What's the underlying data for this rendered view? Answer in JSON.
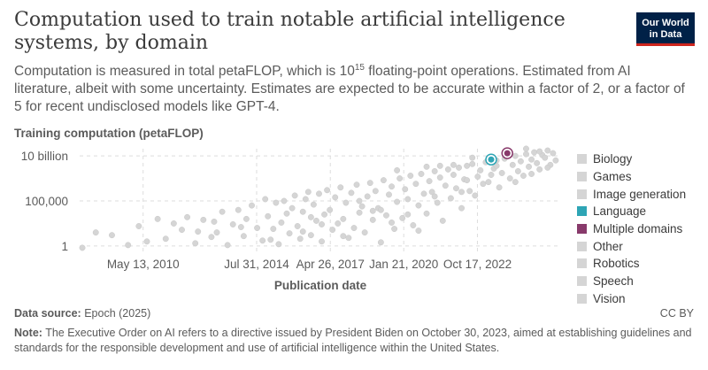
{
  "header": {
    "title": "Computation used to train notable artificial intelligence systems, by domain",
    "subtitle_part1": "Computation is measured in total petaFLOP, which is 10",
    "subtitle_sup": "15",
    "subtitle_part2": " floating-point operations. Estimated from AI literature, albeit with some uncertainty. Estimates are expected to be accurate within a factor of 2, or a factor of 5 for recent undisclosed models like GPT-4."
  },
  "logo": {
    "line1": "Our World",
    "line2": "in Data"
  },
  "footer": {
    "source_label": "Data source:",
    "source_value": " Epoch (2025)",
    "license": "CC BY",
    "note_label": "Note:",
    "note_value": " The Executive Order on AI refers to a directive issued by President Biden on October 30, 2023, aimed at establishing guidelines and standards for the responsible development and use of artificial intelligence within the United States."
  },
  "colors": {
    "neutral": "#d5d5d5",
    "language": "#2ea5b5",
    "multiple": "#883a6b",
    "grid": "#dddddd"
  },
  "chart_data": {
    "type": "scatter",
    "ylabel": "Training computation (petaFLOP)",
    "xlabel": "Publication date",
    "y_scale": "log",
    "y_log10_range": [
      -0.6,
      10.8
    ],
    "y_ticks": [
      {
        "label": "10 billion",
        "log10": 10
      },
      {
        "label": "100,000",
        "log10": 5
      },
      {
        "label": "1",
        "log10": 0
      }
    ],
    "x_range": [
      2008.0,
      2025.9
    ],
    "x_ticks": [
      {
        "label": "May 13, 2010",
        "year": 2010.36
      },
      {
        "label": "Jul 31, 2014",
        "year": 2014.58
      },
      {
        "label": "Apr 26, 2017",
        "year": 2017.32
      },
      {
        "label": "Jan 21, 2020",
        "year": 2020.05
      },
      {
        "label": "Oct 17, 2022",
        "year": 2022.79
      }
    ],
    "legend": [
      "Biology",
      "Games",
      "Image generation",
      "Language",
      "Multiple domains",
      "Other",
      "Robotics",
      "Speech",
      "Vision"
    ],
    "highlighted": [
      {
        "domain": "Language",
        "year": 2023.3,
        "log10": 9.6
      },
      {
        "domain": "Multiple domains",
        "year": 2023.9,
        "log10": 10.3
      }
    ],
    "points": [
      [
        2008.1,
        -0.2
      ],
      [
        2008.6,
        1.5
      ],
      [
        2009.2,
        1.2
      ],
      [
        2009.8,
        0.1
      ],
      [
        2010.2,
        2.2
      ],
      [
        2010.5,
        0.5
      ],
      [
        2010.9,
        3.0
      ],
      [
        2011.2,
        0.8
      ],
      [
        2011.5,
        2.5
      ],
      [
        2011.8,
        1.8
      ],
      [
        2012.0,
        3.2
      ],
      [
        2012.3,
        0.3
      ],
      [
        2012.6,
        2.9
      ],
      [
        2012.9,
        1.0
      ],
      [
        2013.1,
        1.5
      ],
      [
        2013.3,
        3.8
      ],
      [
        2013.5,
        0.1
      ],
      [
        2013.7,
        2.4
      ],
      [
        2013.9,
        4.0
      ],
      [
        2014.1,
        1.1
      ],
      [
        2014.2,
        3.0
      ],
      [
        2014.4,
        4.5
      ],
      [
        2014.6,
        2.0
      ],
      [
        2014.8,
        0.6
      ],
      [
        2014.9,
        5.2
      ],
      [
        2015.0,
        3.3
      ],
      [
        2015.2,
        1.9
      ],
      [
        2015.3,
        4.8
      ],
      [
        2015.4,
        0.2
      ],
      [
        2015.5,
        2.6
      ],
      [
        2015.6,
        5.0
      ],
      [
        2015.7,
        3.6
      ],
      [
        2015.8,
        1.4
      ],
      [
        2015.9,
        4.2
      ],
      [
        2016.0,
        5.6
      ],
      [
        2016.1,
        2.2
      ],
      [
        2016.2,
        0.8
      ],
      [
        2016.3,
        3.8
      ],
      [
        2016.4,
        5.2
      ],
      [
        2016.5,
        6.0
      ],
      [
        2016.6,
        1.2
      ],
      [
        2016.7,
        4.6
      ],
      [
        2016.8,
        2.8
      ],
      [
        2016.9,
        5.8
      ],
      [
        2017.0,
        0.5
      ],
      [
        2017.1,
        3.5
      ],
      [
        2017.2,
        6.2
      ],
      [
        2017.3,
        4.0
      ],
      [
        2017.4,
        1.8
      ],
      [
        2017.5,
        5.4
      ],
      [
        2017.6,
        2.5
      ],
      [
        2017.7,
        6.5
      ],
      [
        2017.8,
        3.0
      ],
      [
        2017.9,
        4.8
      ],
      [
        2018.0,
        0.9
      ],
      [
        2018.1,
        5.9
      ],
      [
        2018.2,
        2.0
      ],
      [
        2018.3,
        6.8
      ],
      [
        2018.4,
        3.7
      ],
      [
        2018.5,
        4.4
      ],
      [
        2018.6,
        1.5
      ],
      [
        2018.7,
        5.5
      ],
      [
        2018.8,
        7.0
      ],
      [
        2018.9,
        2.9
      ],
      [
        2019.0,
        6.1
      ],
      [
        2019.1,
        4.2
      ],
      [
        2019.2,
        0.4
      ],
      [
        2019.3,
        7.3
      ],
      [
        2019.4,
        3.4
      ],
      [
        2019.5,
        5.7
      ],
      [
        2019.6,
        6.6
      ],
      [
        2019.7,
        1.9
      ],
      [
        2019.8,
        4.9
      ],
      [
        2019.9,
        7.5
      ],
      [
        2020.0,
        3.1
      ],
      [
        2020.1,
        6.3
      ],
      [
        2020.2,
        5.2
      ],
      [
        2020.3,
        7.8
      ],
      [
        2020.4,
        2.3
      ],
      [
        2020.5,
        6.9
      ],
      [
        2020.6,
        4.5
      ],
      [
        2020.7,
        8.0
      ],
      [
        2020.8,
        5.8
      ],
      [
        2020.9,
        3.6
      ],
      [
        2021.0,
        7.2
      ],
      [
        2021.1,
        6.0
      ],
      [
        2021.2,
        8.3
      ],
      [
        2021.3,
        4.8
      ],
      [
        2021.4,
        7.6
      ],
      [
        2021.5,
        2.8
      ],
      [
        2021.6,
        6.7
      ],
      [
        2021.7,
        8.5
      ],
      [
        2021.8,
        5.3
      ],
      [
        2021.9,
        7.9
      ],
      [
        2022.0,
        6.4
      ],
      [
        2022.1,
        8.7
      ],
      [
        2022.2,
        4.2
      ],
      [
        2022.3,
        7.4
      ],
      [
        2022.4,
        8.9
      ],
      [
        2022.5,
        6.1
      ],
      [
        2022.6,
        9.1
      ],
      [
        2022.7,
        5.6
      ],
      [
        2022.8,
        7.7
      ],
      [
        2022.9,
        8.4
      ],
      [
        2023.0,
        6.9
      ],
      [
        2023.1,
        9.3
      ],
      [
        2023.2,
        7.1
      ],
      [
        2023.4,
        8.6
      ],
      [
        2023.5,
        9.5
      ],
      [
        2023.6,
        6.5
      ],
      [
        2023.7,
        8.1
      ],
      [
        2023.8,
        9.7
      ],
      [
        2024.0,
        7.5
      ],
      [
        2024.1,
        9.0
      ],
      [
        2024.2,
        10.0
      ],
      [
        2024.3,
        8.3
      ],
      [
        2024.4,
        9.4
      ],
      [
        2024.5,
        7.8
      ],
      [
        2024.6,
        10.2
      ],
      [
        2024.7,
        8.8
      ],
      [
        2024.8,
        9.6
      ],
      [
        2024.9,
        10.4
      ],
      [
        2025.0,
        9.2
      ],
      [
        2025.1,
        8.5
      ],
      [
        2025.2,
        10.1
      ],
      [
        2025.3,
        9.8
      ],
      [
        2025.4,
        10.6
      ],
      [
        2025.5,
        9.0
      ],
      [
        2025.6,
        10.3
      ],
      [
        2025.7,
        9.5
      ],
      [
        2019.2,
        4.0
      ],
      [
        2020.2,
        3.5
      ],
      [
        2021.2,
        5.5
      ],
      [
        2022.2,
        6.0
      ],
      [
        2023.3,
        7.9
      ],
      [
        2024.2,
        7.1
      ],
      [
        2025.1,
        10.5
      ],
      [
        2018.4,
        5.0
      ],
      [
        2017.0,
        2.4
      ],
      [
        2016.3,
        1.6
      ],
      [
        2015.1,
        0.7
      ],
      [
        2021.9,
        9.0
      ],
      [
        2022.6,
        9.8
      ],
      [
        2023.9,
        10.6
      ],
      [
        2024.6,
        10.8
      ],
      [
        2020.9,
        8.8
      ],
      [
        2019.8,
        8.4
      ],
      [
        2021.4,
        8.9
      ],
      [
        2022.4,
        7.3
      ],
      [
        2023.5,
        8.9
      ],
      [
        2024.8,
        8.0
      ],
      [
        2025.4,
        8.7
      ],
      [
        2013.0,
        2.7
      ],
      [
        2012.4,
        1.6
      ],
      [
        2014.0,
        2.1
      ],
      [
        2016.6,
        3.2
      ],
      [
        2017.8,
        1.1
      ],
      [
        2018.9,
        3.9
      ],
      [
        2019.6,
        2.6
      ],
      [
        2020.6,
        1.7
      ]
    ]
  }
}
